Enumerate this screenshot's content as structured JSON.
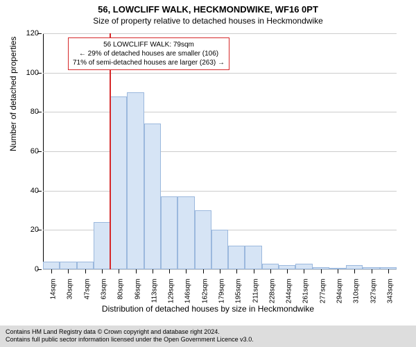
{
  "title": "56, LOWCLIFF WALK, HECKMONDWIKE, WF16 0PT",
  "subtitle": "Size of property relative to detached houses in Heckmondwike",
  "ylabel": "Number of detached properties",
  "xlabel": "Distribution of detached houses by size in Heckmondwike",
  "chart": {
    "type": "histogram",
    "y_max": 120,
    "y_ticks": [
      0,
      20,
      40,
      60,
      80,
      100,
      120
    ],
    "x_labels": [
      "14sqm",
      "30sqm",
      "47sqm",
      "63sqm",
      "80sqm",
      "96sqm",
      "113sqm",
      "129sqm",
      "146sqm",
      "162sqm",
      "179sqm",
      "195sqm",
      "211sqm",
      "228sqm",
      "244sqm",
      "261sqm",
      "277sqm",
      "294sqm",
      "310sqm",
      "327sqm",
      "343sqm"
    ],
    "values": [
      4,
      4,
      4,
      24,
      88,
      90,
      74,
      37,
      37,
      30,
      20,
      12,
      12,
      3,
      2,
      3,
      1,
      0,
      2,
      1,
      1
    ],
    "bar_fill": "#d6e4f5",
    "bar_stroke": "#9bb8dd",
    "grid_color": "#cccccc",
    "refline_color": "#d62728",
    "refline_x_index": 4.0,
    "background": "#ffffff"
  },
  "annotation": {
    "line1": "56 LOWCLIFF WALK: 79sqm",
    "line2": "← 29% of detached houses are smaller (106)",
    "line3": "71% of semi-detached houses are larger (263) →"
  },
  "footer": {
    "line1": "Contains HM Land Registry data © Crown copyright and database right 2024.",
    "line2": "Contains full public sector information licensed under the Open Government Licence v3.0."
  }
}
